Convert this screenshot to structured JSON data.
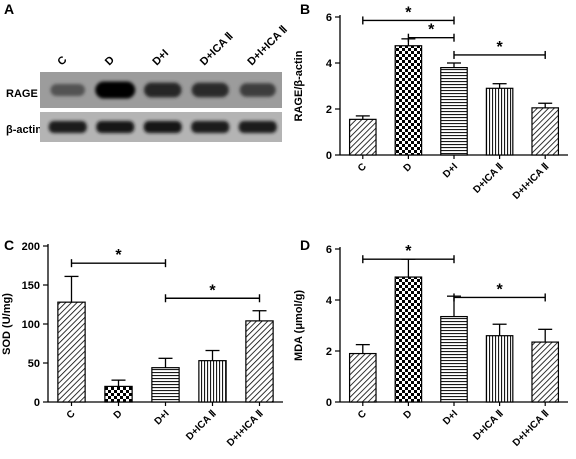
{
  "figure": {
    "panel_a": {
      "letter": "A",
      "lanes": [
        "C",
        "D",
        "D+I",
        "D+ICA Ⅱ",
        "D+I+ICA Ⅱ"
      ],
      "rows": [
        "RAGE",
        "β-actin"
      ],
      "rage_intensity": [
        0.45,
        1.0,
        0.75,
        0.72,
        0.6
      ],
      "actin_intensity": [
        0.82,
        0.85,
        0.84,
        0.83,
        0.8
      ]
    },
    "panel_b_letter": "B",
    "panel_c_letter": "C",
    "panel_d_letter": "D"
  },
  "chart_data": [
    {
      "panel": "B",
      "type": "bar",
      "ylabel": "RAGE/β-actin",
      "categories": [
        "C",
        "D",
        "D+I",
        "D+ICA Ⅱ",
        "D+I+ICA Ⅱ"
      ],
      "values": [
        1.55,
        4.75,
        3.8,
        2.9,
        2.05
      ],
      "errors": [
        0.15,
        0.3,
        0.2,
        0.2,
        0.2
      ],
      "patterns": [
        "diag",
        "check",
        "hlines",
        "vlines",
        "diag"
      ],
      "ylim": [
        0,
        6
      ],
      "yticks": [
        0,
        2,
        4,
        6
      ],
      "brackets": [
        {
          "from": 0,
          "to": 2,
          "y": 5.85,
          "label": "*"
        },
        {
          "from": 1,
          "to": 2,
          "y": 5.1,
          "label": "*"
        },
        {
          "from": 2,
          "to": 4,
          "y": 4.35,
          "label": "*"
        }
      ]
    },
    {
      "panel": "C",
      "type": "bar",
      "ylabel": "SOD (U/mg)",
      "categories": [
        "C",
        "D",
        "D+I",
        "D+ICA Ⅱ",
        "D+I+ICA Ⅱ"
      ],
      "values": [
        128,
        20,
        44,
        53,
        104
      ],
      "errors": [
        33,
        8,
        12,
        13,
        13
      ],
      "patterns": [
        "diag",
        "check",
        "hlines",
        "vlines",
        "diag"
      ],
      "ylim": [
        0,
        200
      ],
      "yticks": [
        0,
        50,
        100,
        150,
        200
      ],
      "brackets": [
        {
          "from": 0,
          "to": 2,
          "y": 178,
          "label": "*"
        },
        {
          "from": 2,
          "to": 4,
          "y": 133,
          "label": "*"
        }
      ]
    },
    {
      "panel": "D",
      "type": "bar",
      "ylabel": "MDA (μmol/g)",
      "categories": [
        "C",
        "D",
        "D+I",
        "D+ICA Ⅱ",
        "D+I+ICA Ⅱ"
      ],
      "values": [
        1.9,
        4.9,
        3.35,
        2.6,
        2.35
      ],
      "errors": [
        0.35,
        0.7,
        0.8,
        0.45,
        0.5
      ],
      "patterns": [
        "diag",
        "check",
        "hlines",
        "vlines",
        "diag"
      ],
      "ylim": [
        0,
        6
      ],
      "yticks": [
        0,
        2,
        4,
        6
      ],
      "brackets": [
        {
          "from": 0,
          "to": 2,
          "y": 5.6,
          "label": "*"
        },
        {
          "from": 2,
          "to": 4,
          "y": 4.1,
          "label": "*"
        }
      ]
    }
  ]
}
